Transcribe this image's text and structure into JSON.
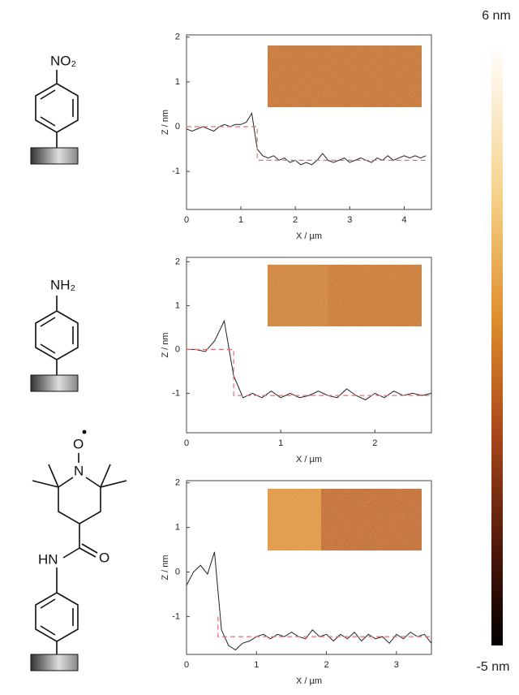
{
  "chart_data": [
    {
      "type": "line",
      "xlabel": "X / µm",
      "ylabel": "Z / nm",
      "xlim": [
        0,
        4.5
      ],
      "ylim": [
        -1.85,
        2.05
      ],
      "xticks": [
        0,
        1,
        2,
        3,
        4
      ],
      "yticks": [
        -1,
        0,
        1,
        2
      ],
      "series": [
        {
          "color": "#222222",
          "dash": false,
          "x": [
            0,
            0.1,
            0.2,
            0.3,
            0.4,
            0.5,
            0.6,
            0.7,
            0.8,
            0.9,
            1.0,
            1.1,
            1.2,
            1.3,
            1.4,
            1.5,
            1.6,
            1.7,
            1.8,
            1.9,
            2.0,
            2.1,
            2.2,
            2.3,
            2.4,
            2.5,
            2.6,
            2.7,
            2.8,
            2.9,
            3.0,
            3.1,
            3.2,
            3.3,
            3.4,
            3.5,
            3.6,
            3.7,
            3.8,
            3.9,
            4.0,
            4.1,
            4.2,
            4.3,
            4.4
          ],
          "values": [
            -0.05,
            -0.1,
            -0.05,
            0,
            -0.05,
            -0.1,
            0,
            0.05,
            0,
            0.05,
            0.05,
            0.1,
            0.3,
            -0.5,
            -0.65,
            -0.7,
            -0.65,
            -0.75,
            -0.7,
            -0.8,
            -0.75,
            -0.85,
            -0.8,
            -0.85,
            -0.75,
            -0.6,
            -0.75,
            -0.8,
            -0.75,
            -0.7,
            -0.8,
            -0.75,
            -0.7,
            -0.75,
            -0.8,
            -0.7,
            -0.75,
            -0.65,
            -0.75,
            -0.7,
            -0.65,
            -0.7,
            -0.65,
            -0.7,
            -0.65
          ]
        },
        {
          "color": "#e07070",
          "dash": true,
          "x": [
            0,
            1.3,
            1.3,
            4.4
          ],
          "values": [
            0,
            0,
            -0.75,
            -0.75
          ]
        }
      ]
    },
    {
      "type": "line",
      "xlabel": "X / µm",
      "ylabel": "Z / nm",
      "xlim": [
        0,
        2.6
      ],
      "ylim": [
        -1.9,
        2.1
      ],
      "xticks": [
        0,
        1,
        2
      ],
      "yticks": [
        -1,
        0,
        1,
        2
      ],
      "series": [
        {
          "color": "#222222",
          "dash": false,
          "x": [
            0,
            0.1,
            0.2,
            0.3,
            0.4,
            0.5,
            0.6,
            0.7,
            0.8,
            0.9,
            1.0,
            1.1,
            1.2,
            1.3,
            1.4,
            1.5,
            1.6,
            1.7,
            1.8,
            1.9,
            2.0,
            2.1,
            2.2,
            2.3,
            2.4,
            2.5,
            2.6
          ],
          "values": [
            0,
            0,
            -0.05,
            0.2,
            0.65,
            -0.6,
            -1.1,
            -1.0,
            -1.1,
            -0.95,
            -1.1,
            -1.0,
            -1.1,
            -1.05,
            -0.95,
            -1.05,
            -1.1,
            -0.9,
            -1.05,
            -1.15,
            -1.0,
            -1.1,
            -0.95,
            -1.05,
            -1.0,
            -1.05,
            -1.0
          ]
        },
        {
          "color": "#e07070",
          "dash": true,
          "x": [
            0,
            0.5,
            0.5,
            2.6
          ],
          "values": [
            0,
            0,
            -1.05,
            -1.05
          ]
        }
      ]
    },
    {
      "type": "line",
      "xlabel": "X / µm",
      "ylabel": "Z / nm",
      "xlim": [
        0,
        3.5
      ],
      "ylim": [
        -1.85,
        2.05
      ],
      "xticks": [
        0,
        1,
        2,
        3
      ],
      "yticks": [
        -1,
        0,
        1,
        2
      ],
      "series": [
        {
          "color": "#222222",
          "dash": false,
          "x": [
            0,
            0.1,
            0.2,
            0.3,
            0.4,
            0.5,
            0.6,
            0.7,
            0.8,
            0.9,
            1.0,
            1.1,
            1.2,
            1.3,
            1.4,
            1.5,
            1.6,
            1.7,
            1.8,
            1.9,
            2.0,
            2.1,
            2.2,
            2.3,
            2.4,
            2.5,
            2.6,
            2.7,
            2.8,
            2.9,
            3.0,
            3.1,
            3.2,
            3.3,
            3.4,
            3.5
          ],
          "values": [
            -0.3,
            0,
            0.15,
            -0.05,
            0.45,
            -1.3,
            -1.65,
            -1.75,
            -1.6,
            -1.55,
            -1.45,
            -1.4,
            -1.5,
            -1.4,
            -1.45,
            -1.35,
            -1.45,
            -1.5,
            -1.3,
            -1.45,
            -1.4,
            -1.55,
            -1.4,
            -1.5,
            -1.35,
            -1.55,
            -1.4,
            -1.5,
            -1.45,
            -1.6,
            -1.4,
            -1.5,
            -1.35,
            -1.45,
            -1.4,
            -1.6
          ]
        },
        {
          "color": "#e07070",
          "dash": true,
          "x": [
            0.45,
            0.45,
            3.5
          ],
          "values": [
            -1.0,
            -1.45,
            -1.45
          ]
        }
      ]
    }
  ],
  "colorbar": {
    "max_label": "6 nm",
    "min_label": "-5 nm"
  },
  "molecules": [
    {
      "group": "NO₂"
    },
    {
      "group": "NH₂"
    },
    {
      "atoms": [
        "O",
        "N",
        "HN",
        "O"
      ]
    }
  ]
}
